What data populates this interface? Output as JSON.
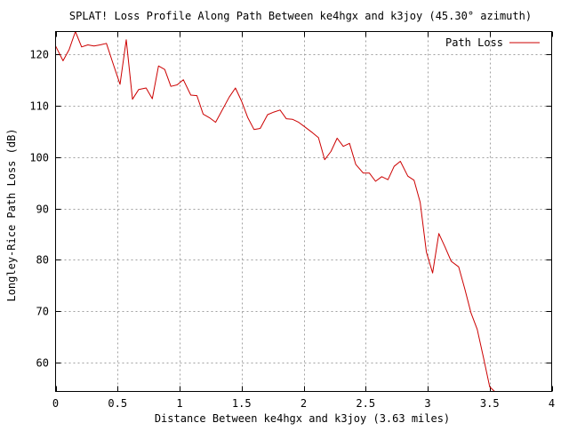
{
  "chart_data": {
    "type": "line",
    "title": "SPLAT! Loss Profile Along Path Between ke4hgx and k3joy (45.30° azimuth)",
    "xlabel": "Distance Between ke4hgx and k3joy (3.63 miles)",
    "ylabel": "Longley-Rice Path Loss (dB)",
    "xlim": [
      0,
      4
    ],
    "ylim": [
      54.3,
      124.5
    ],
    "xticks": [
      0,
      0.5,
      1,
      1.5,
      2,
      2.5,
      3,
      3.5,
      4
    ],
    "xtick_labels": [
      "0",
      "0.5",
      "1",
      "1.5",
      "2",
      "2.5",
      "3",
      "3.5",
      "4"
    ],
    "yticks": [
      60,
      70,
      80,
      90,
      100,
      110,
      120
    ],
    "ytick_labels": [
      "60",
      "70",
      "80",
      "90",
      "100",
      "110",
      "120"
    ],
    "grid": true,
    "legend": {
      "position": "top-right",
      "entries": [
        "Path Loss"
      ]
    },
    "series": [
      {
        "name": "Path Loss",
        "color": "#cc0000",
        "x": [
          0.0,
          0.06,
          0.11,
          0.16,
          0.21,
          0.26,
          0.31,
          0.36,
          0.41,
          0.46,
          0.52,
          0.57,
          0.62,
          0.67,
          0.73,
          0.78,
          0.83,
          0.88,
          0.93,
          0.98,
          1.03,
          1.09,
          1.14,
          1.19,
          1.24,
          1.29,
          1.34,
          1.4,
          1.45,
          1.5,
          1.55,
          1.6,
          1.65,
          1.71,
          1.76,
          1.81,
          1.86,
          1.91,
          1.96,
          2.01,
          2.07,
          2.12,
          2.17,
          2.22,
          2.27,
          2.32,
          2.37,
          2.42,
          2.48,
          2.53,
          2.58,
          2.63,
          2.68,
          2.73,
          2.78,
          2.84,
          2.89,
          2.94,
          2.99,
          3.04,
          3.09,
          3.14,
          3.19,
          3.25,
          3.3,
          3.35,
          3.4,
          3.45,
          3.5,
          3.54
        ],
        "values": [
          121.7,
          118.8,
          121.0,
          124.5,
          121.5,
          121.9,
          121.7,
          121.9,
          122.2,
          118.5,
          114.2,
          122.9,
          111.3,
          113.2,
          113.5,
          111.4,
          117.8,
          117.1,
          113.8,
          114.1,
          115.1,
          112.1,
          112.0,
          108.4,
          107.7,
          106.8,
          109.0,
          111.7,
          113.5,
          110.9,
          107.7,
          105.4,
          105.6,
          108.3,
          108.8,
          109.2,
          107.5,
          107.4,
          106.8,
          105.9,
          104.8,
          103.8,
          99.5,
          101.1,
          103.7,
          102.1,
          102.7,
          98.6,
          96.9,
          96.9,
          95.3,
          96.2,
          95.6,
          98.2,
          99.2,
          96.3,
          95.5,
          91.2,
          81.5,
          77.4,
          85.1,
          82.5,
          79.7,
          78.6,
          74.3,
          69.6,
          66.4,
          60.9,
          55.2,
          54.3
        ]
      }
    ]
  }
}
